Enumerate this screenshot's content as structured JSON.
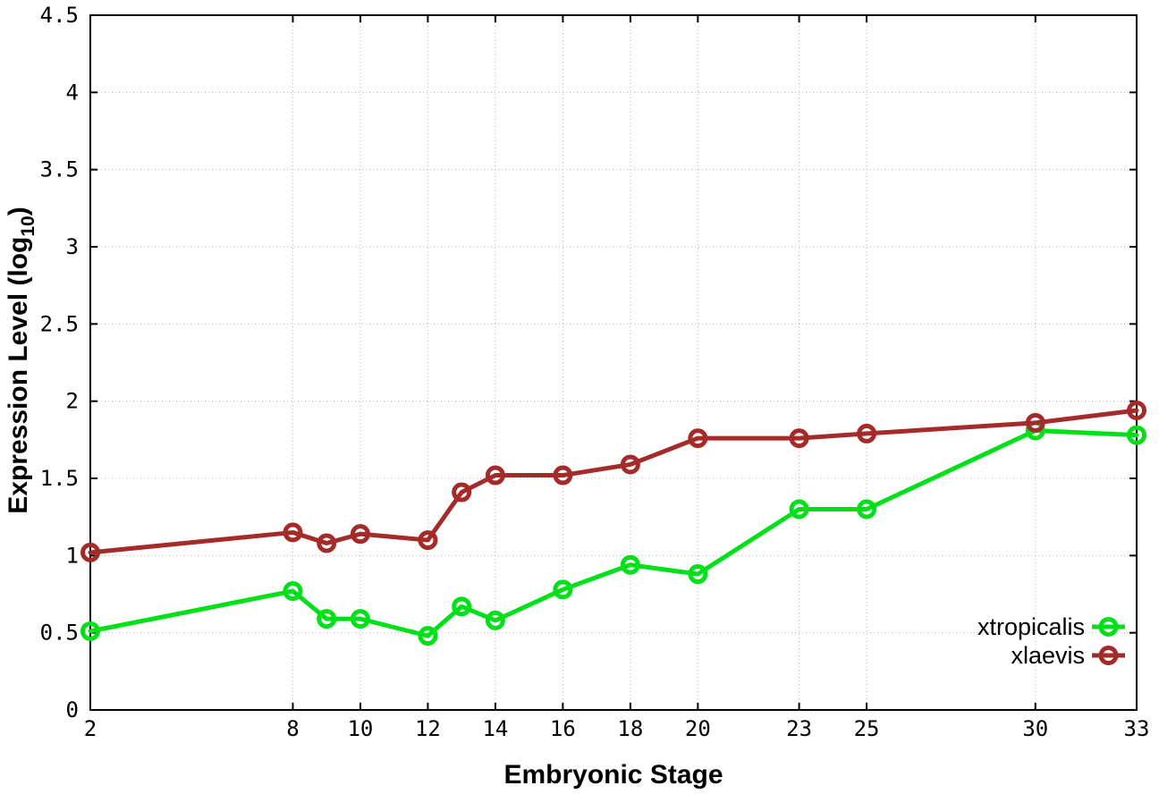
{
  "figure": {
    "background": "#ffffff",
    "frame_color": "#000000",
    "grid_color": "#b4b4b4",
    "tick_label_color": "#000000"
  },
  "chart_data": {
    "type": "line",
    "title": "",
    "xlabel": "Embryonic Stage",
    "ylabel": "Expression Level (log10)",
    "ylabel_parts": {
      "base": "Expression Level (log",
      "sub": "10",
      "close": ")"
    },
    "xlim": [
      2,
      33
    ],
    "ylim": [
      0,
      4.5
    ],
    "grid": "dotted",
    "legend_position": "inside-bottom-right",
    "x": [
      2,
      8,
      9,
      10,
      12,
      13,
      14,
      16,
      18,
      20,
      23,
      25,
      30,
      33
    ],
    "x_ticks": {
      "values": [
        2,
        8,
        10,
        12,
        14,
        16,
        18,
        20,
        23,
        25,
        30,
        33
      ],
      "labels": [
        "2",
        "8",
        "10",
        "12",
        "14",
        "16",
        "18",
        "20",
        "23",
        "25",
        "30",
        "33"
      ]
    },
    "y_ticks": {
      "values": [
        0,
        0.5,
        1,
        1.5,
        2,
        2.5,
        3,
        3.5,
        4,
        4.5
      ],
      "labels": [
        "0",
        "0.5",
        "1",
        "1.5",
        "2",
        "2.5",
        "3",
        "3.5",
        "4",
        "4.5"
      ]
    },
    "series": [
      {
        "name": "xtropicalis",
        "color": "#00e018",
        "marker": "open-circle",
        "values": [
          0.51,
          0.77,
          0.59,
          0.59,
          0.48,
          0.67,
          0.58,
          0.78,
          0.94,
          0.88,
          1.3,
          1.3,
          1.81,
          1.78
        ]
      },
      {
        "name": "xlaevis",
        "color": "#a52a2a",
        "marker": "open-circle",
        "values": [
          1.02,
          1.15,
          1.08,
          1.14,
          1.1,
          1.41,
          1.52,
          1.52,
          1.59,
          1.76,
          1.76,
          1.79,
          1.86,
          1.94
        ]
      }
    ]
  }
}
